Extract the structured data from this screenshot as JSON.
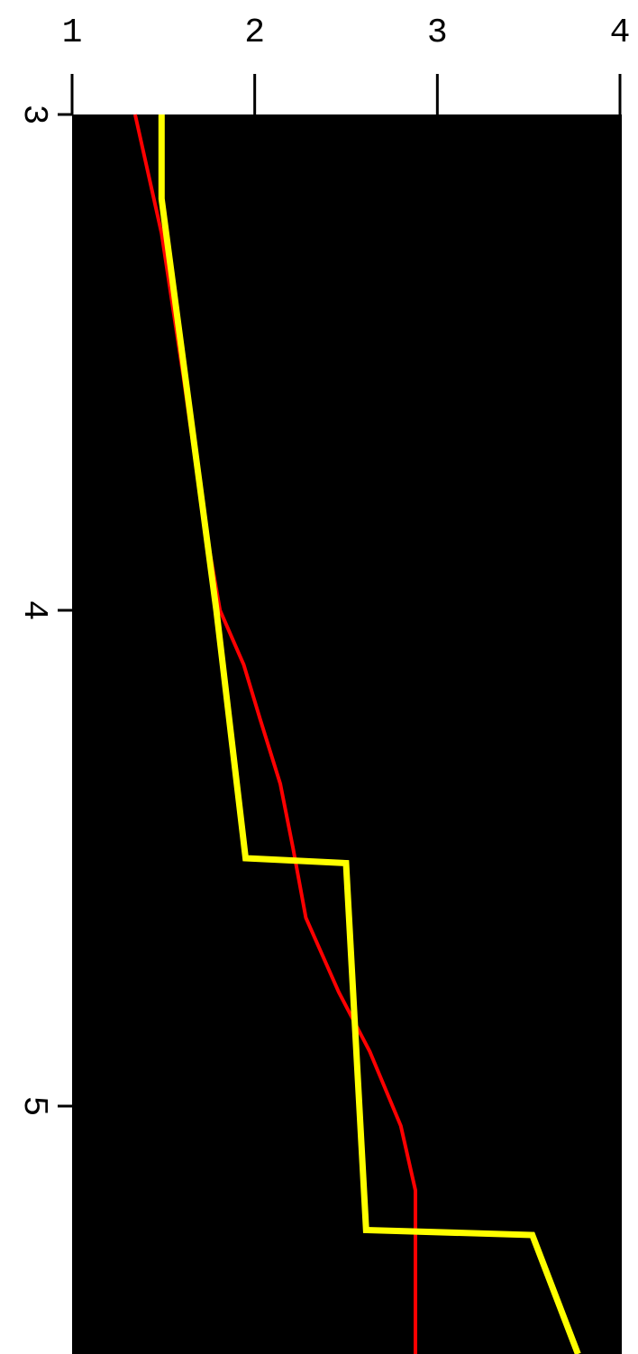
{
  "chart_data": {
    "type": "line",
    "xlim": [
      1,
      4
    ],
    "xticks": [
      1,
      2,
      3,
      4
    ],
    "ylim": [
      3,
      5.5
    ],
    "yticks": [
      3,
      4,
      5
    ],
    "y_inverted": true,
    "background": "#000000",
    "series": [
      {
        "color": "#ff0000",
        "width": 4,
        "x": [
          1.345,
          1.49,
          1.61,
          1.71,
          1.81,
          1.94,
          2.03,
          2.14,
          2.21,
          2.28,
          2.46,
          2.63,
          2.8,
          2.88,
          2.88
        ],
        "values": [
          3.0,
          3.24,
          3.53,
          3.79,
          4.0,
          4.11,
          4.22,
          4.35,
          4.48,
          4.62,
          4.77,
          4.89,
          5.04,
          5.17,
          5.5
        ]
      },
      {
        "color": "#ffff00",
        "width": 7,
        "x": [
          1.49,
          1.49,
          1.79,
          1.95,
          2.5,
          2.61,
          3.52,
          3.77
        ],
        "values": [
          3.0,
          3.17,
          4.0,
          4.5,
          4.51,
          5.25,
          5.26,
          5.5
        ]
      }
    ]
  }
}
